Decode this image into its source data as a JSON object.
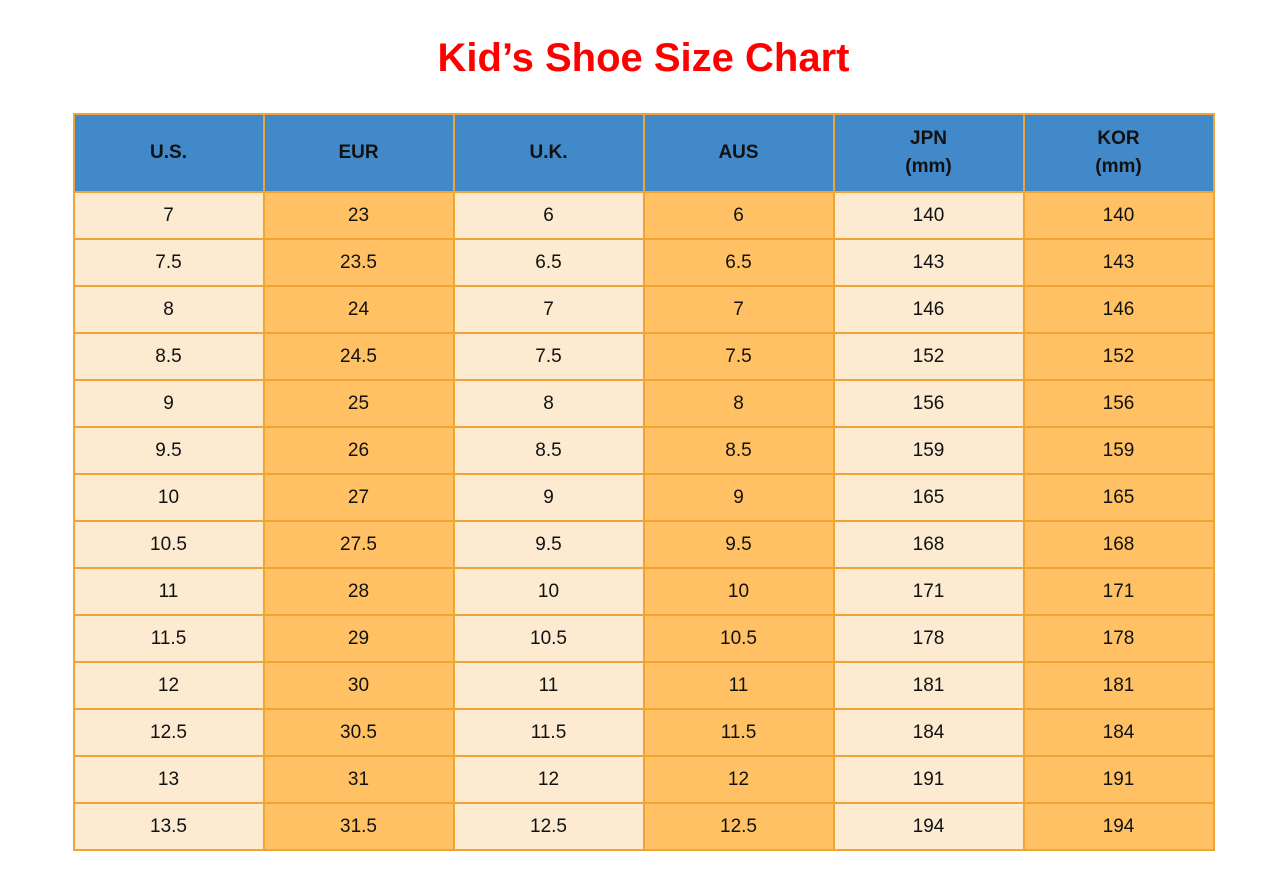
{
  "title": "Kid’s Shoe Size Chart",
  "colors": {
    "title_text": "#fe0000",
    "header_background": "#4189c8",
    "header_text": "#111111",
    "column_fill_light": "#fcead1",
    "column_fill_dark": "#ffc163",
    "grid_border": "#f0a336",
    "cell_text": "#111111",
    "page_background": "#ffffff"
  },
  "chart_data": {
    "type": "table",
    "title": "Kid’s Shoe Size Chart",
    "columns": [
      {
        "label": "U.S.",
        "sublabel": ""
      },
      {
        "label": "EUR",
        "sublabel": ""
      },
      {
        "label": "U.K.",
        "sublabel": ""
      },
      {
        "label": "AUS",
        "sublabel": ""
      },
      {
        "label": "JPN",
        "sublabel": "(mm)"
      },
      {
        "label": "KOR",
        "sublabel": "(mm)"
      }
    ],
    "rows": [
      [
        "7",
        "23",
        "6",
        "6",
        "140",
        "140"
      ],
      [
        "7.5",
        "23.5",
        "6.5",
        "6.5",
        "143",
        "143"
      ],
      [
        "8",
        "24",
        "7",
        "7",
        "146",
        "146"
      ],
      [
        "8.5",
        "24.5",
        "7.5",
        "7.5",
        "152",
        "152"
      ],
      [
        "9",
        "25",
        "8",
        "8",
        "156",
        "156"
      ],
      [
        "9.5",
        "26",
        "8.5",
        "8.5",
        "159",
        "159"
      ],
      [
        "10",
        "27",
        "9",
        "9",
        "165",
        "165"
      ],
      [
        "10.5",
        "27.5",
        "9.5",
        "9.5",
        "168",
        "168"
      ],
      [
        "11",
        "28",
        "10",
        "10",
        "171",
        "171"
      ],
      [
        "11.5",
        "29",
        "10.5",
        "10.5",
        "178",
        "178"
      ],
      [
        "12",
        "30",
        "11",
        "11",
        "181",
        "181"
      ],
      [
        "12.5",
        "30.5",
        "11.5",
        "11.5",
        "184",
        "184"
      ],
      [
        "13",
        "31",
        "12",
        "12",
        "191",
        "191"
      ],
      [
        "13.5",
        "31.5",
        "12.5",
        "12.5",
        "194",
        "194"
      ]
    ],
    "layout_hints": {
      "grid": true,
      "column_fill_pattern": [
        "light",
        "dark",
        "light",
        "dark",
        "light",
        "dark"
      ]
    }
  }
}
